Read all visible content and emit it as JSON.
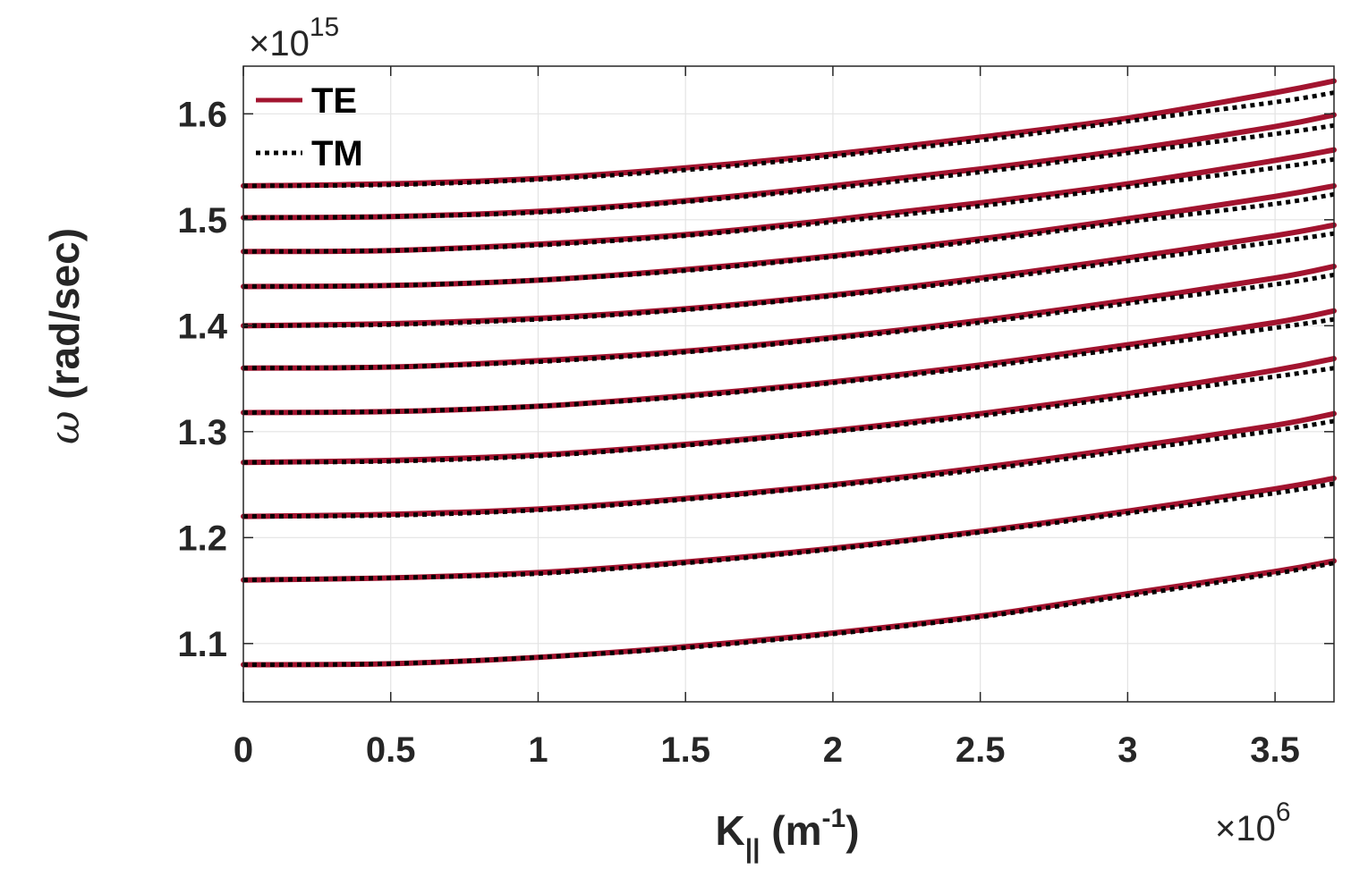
{
  "chart_data": {
    "type": "line",
    "xlabel": {
      "main": "K",
      "sub": "||",
      "unit_open": " (m",
      "unit_exp": "-1",
      "unit_close": ")"
    },
    "ylabel": {
      "symbol": "ω",
      "text": " (rad/sec)"
    },
    "x_multiplier": {
      "base": "×10",
      "exp": "6"
    },
    "y_multiplier": {
      "base": "×10",
      "exp": "15"
    },
    "xlim": [
      0,
      3.7
    ],
    "ylim": [
      1.045,
      1.645
    ],
    "xticks": [
      0,
      0.5,
      1,
      1.5,
      2,
      2.5,
      3,
      3.5
    ],
    "xtick_labels": [
      "0",
      "0.5",
      "1",
      "1.5",
      "2",
      "2.5",
      "3",
      "3.5"
    ],
    "yticks": [
      1.1,
      1.2,
      1.3,
      1.4,
      1.5,
      1.6
    ],
    "ytick_labels": [
      "1.1",
      "1.2",
      "1.3",
      "1.4",
      "1.5",
      "1.6"
    ],
    "grid": true,
    "legend": {
      "placement": "top-left",
      "entries": [
        {
          "name": "TE",
          "color": "#a2142f",
          "style": "solid"
        },
        {
          "name": "TM",
          "color": "#000000",
          "style": "dotted"
        }
      ]
    },
    "x": [
      0,
      0.5,
      1,
      1.5,
      2,
      2.5,
      3,
      3.5,
      3.7
    ],
    "series": [
      {
        "name": "TE",
        "mode": 1,
        "values": [
          1.08,
          1.081,
          1.087,
          1.097,
          1.11,
          1.126,
          1.147,
          1.168,
          1.178
        ]
      },
      {
        "name": "TE",
        "mode": 2,
        "values": [
          1.16,
          1.162,
          1.167,
          1.177,
          1.19,
          1.206,
          1.225,
          1.246,
          1.256
        ]
      },
      {
        "name": "TE",
        "mode": 3,
        "values": [
          1.22,
          1.222,
          1.227,
          1.237,
          1.25,
          1.266,
          1.285,
          1.306,
          1.317
        ]
      },
      {
        "name": "TE",
        "mode": 4,
        "values": [
          1.271,
          1.273,
          1.278,
          1.288,
          1.301,
          1.317,
          1.336,
          1.358,
          1.369
        ]
      },
      {
        "name": "TE",
        "mode": 5,
        "values": [
          1.318,
          1.319,
          1.324,
          1.334,
          1.347,
          1.363,
          1.382,
          1.403,
          1.414
        ]
      },
      {
        "name": "TE",
        "mode": 6,
        "values": [
          1.36,
          1.361,
          1.367,
          1.376,
          1.389,
          1.405,
          1.424,
          1.445,
          1.456
        ]
      },
      {
        "name": "TE",
        "mode": 7,
        "values": [
          1.4,
          1.402,
          1.407,
          1.416,
          1.429,
          1.445,
          1.464,
          1.485,
          1.495
        ]
      },
      {
        "name": "TE",
        "mode": 8,
        "values": [
          1.437,
          1.438,
          1.443,
          1.453,
          1.466,
          1.482,
          1.501,
          1.522,
          1.532
        ]
      },
      {
        "name": "TE",
        "mode": 9,
        "values": [
          1.47,
          1.471,
          1.477,
          1.486,
          1.5,
          1.516,
          1.534,
          1.556,
          1.566
        ]
      },
      {
        "name": "TE",
        "mode": 10,
        "values": [
          1.502,
          1.503,
          1.508,
          1.518,
          1.532,
          1.548,
          1.566,
          1.588,
          1.599
        ]
      },
      {
        "name": "TE",
        "mode": 11,
        "values": [
          1.532,
          1.534,
          1.539,
          1.549,
          1.562,
          1.578,
          1.596,
          1.62,
          1.631
        ]
      },
      {
        "name": "TM",
        "mode": 1,
        "values": [
          1.08,
          1.081,
          1.087,
          1.096,
          1.109,
          1.125,
          1.145,
          1.166,
          1.176
        ]
      },
      {
        "name": "TM",
        "mode": 2,
        "values": [
          1.16,
          1.162,
          1.166,
          1.176,
          1.189,
          1.205,
          1.223,
          1.242,
          1.251
        ]
      },
      {
        "name": "TM",
        "mode": 3,
        "values": [
          1.22,
          1.221,
          1.226,
          1.236,
          1.249,
          1.264,
          1.282,
          1.301,
          1.31
        ]
      },
      {
        "name": "TM",
        "mode": 4,
        "values": [
          1.271,
          1.272,
          1.277,
          1.287,
          1.3,
          1.315,
          1.333,
          1.352,
          1.36
        ]
      },
      {
        "name": "TM",
        "mode": 5,
        "values": [
          1.318,
          1.319,
          1.324,
          1.333,
          1.346,
          1.361,
          1.379,
          1.398,
          1.406
        ]
      },
      {
        "name": "TM",
        "mode": 6,
        "values": [
          1.36,
          1.361,
          1.366,
          1.375,
          1.388,
          1.403,
          1.421,
          1.439,
          1.448
        ]
      },
      {
        "name": "TM",
        "mode": 7,
        "values": [
          1.4,
          1.401,
          1.406,
          1.415,
          1.428,
          1.443,
          1.461,
          1.479,
          1.487
        ]
      },
      {
        "name": "TM",
        "mode": 8,
        "values": [
          1.437,
          1.438,
          1.443,
          1.452,
          1.465,
          1.48,
          1.498,
          1.515,
          1.524
        ]
      },
      {
        "name": "TM",
        "mode": 9,
        "values": [
          1.47,
          1.471,
          1.476,
          1.485,
          1.498,
          1.513,
          1.531,
          1.549,
          1.557
        ]
      },
      {
        "name": "TM",
        "mode": 10,
        "values": [
          1.502,
          1.503,
          1.507,
          1.517,
          1.53,
          1.545,
          1.563,
          1.581,
          1.589
        ]
      },
      {
        "name": "TM",
        "mode": 11,
        "values": [
          1.532,
          1.533,
          1.538,
          1.547,
          1.56,
          1.575,
          1.593,
          1.611,
          1.62
        ]
      }
    ]
  }
}
